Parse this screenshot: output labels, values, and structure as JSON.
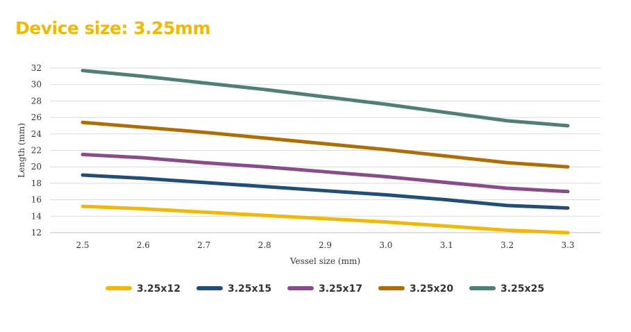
{
  "chart_data": {
    "type": "line",
    "title": "Device size: 3.25mm",
    "xlabel": "Vessel size (mm)",
    "ylabel": "Length (mm)",
    "x": [
      2.5,
      2.6,
      2.7,
      2.8,
      2.9,
      3.0,
      3.1,
      3.2,
      3.3
    ],
    "x_tick_labels": [
      "2.5",
      "2.6",
      "2.7",
      "2.8",
      "2.9",
      "3.0",
      "3.1",
      "3.2",
      "3.3"
    ],
    "ylim": [
      12,
      32
    ],
    "y_ticks": [
      12,
      14,
      16,
      18,
      20,
      22,
      24,
      26,
      28,
      30,
      32
    ],
    "grid": "horizontal",
    "legend_position": "bottom",
    "series": [
      {
        "name": "3.25x12",
        "color": "#F5B800",
        "values": [
          15.2,
          14.9,
          14.5,
          14.1,
          13.7,
          13.3,
          12.8,
          12.3,
          12.0
        ]
      },
      {
        "name": "3.25x15",
        "color": "#1F4E79",
        "values": [
          19.0,
          18.6,
          18.1,
          17.6,
          17.1,
          16.6,
          16.0,
          15.3,
          15.0
        ]
      },
      {
        "name": "3.25x17",
        "color": "#8B4A8C",
        "values": [
          21.5,
          21.1,
          20.5,
          20.0,
          19.4,
          18.8,
          18.1,
          17.4,
          17.0
        ]
      },
      {
        "name": "3.25x20",
        "color": "#B06E00",
        "values": [
          25.4,
          24.8,
          24.2,
          23.5,
          22.8,
          22.1,
          21.3,
          20.5,
          20.0
        ]
      },
      {
        "name": "3.25x25",
        "color": "#4E7F78",
        "values": [
          31.7,
          31.0,
          30.2,
          29.4,
          28.5,
          27.6,
          26.6,
          25.6,
          25.0
        ]
      }
    ]
  }
}
